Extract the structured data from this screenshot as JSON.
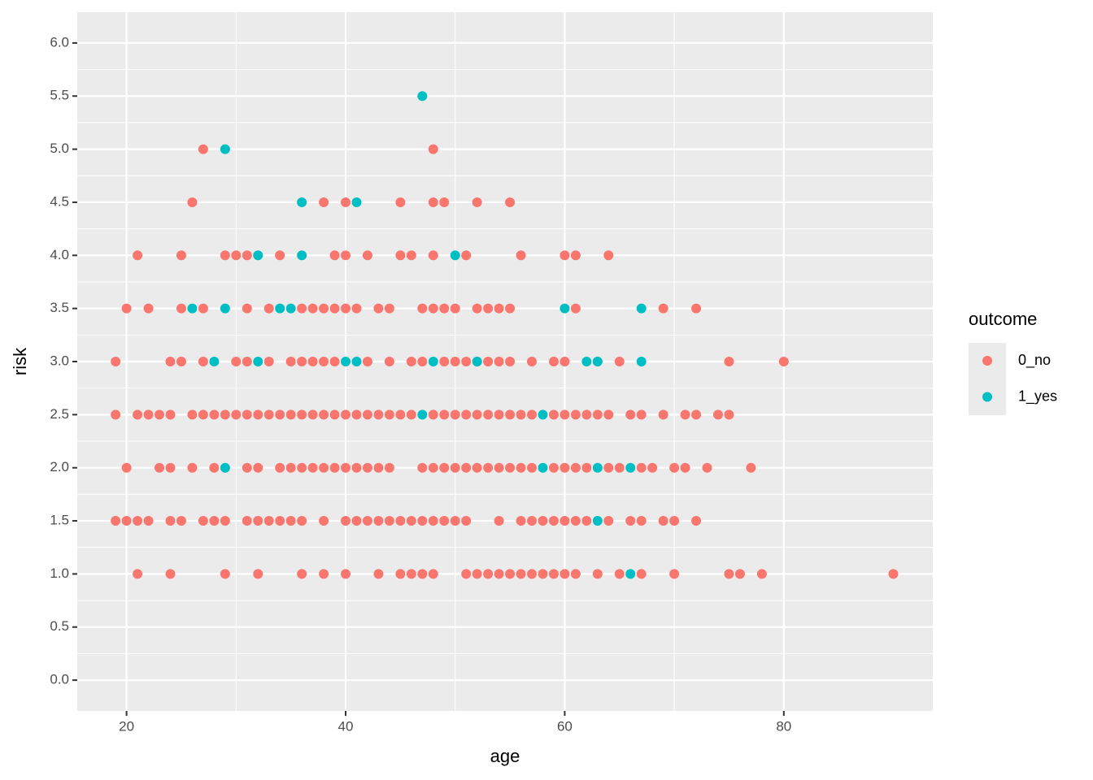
{
  "chart_data": {
    "type": "scatter",
    "x_label": "age",
    "y_label": "risk",
    "legend_title": "outcome",
    "legend_position": "right",
    "grid": true,
    "xlim": [
      15.5,
      93.6
    ],
    "ylim": [
      -0.29,
      6.29
    ],
    "xticks": [
      20,
      40,
      60,
      80
    ],
    "yticks": [
      {
        "value": 0,
        "label": "0.0"
      },
      {
        "value": 0.5,
        "label": "0.5"
      },
      {
        "value": 1,
        "label": "1.0"
      },
      {
        "value": 1.5,
        "label": "1.5"
      },
      {
        "value": 2,
        "label": "2.0"
      },
      {
        "value": 2.5,
        "label": "2.5"
      },
      {
        "value": 3,
        "label": "3.0"
      },
      {
        "value": 3.5,
        "label": "3.5"
      },
      {
        "value": 4,
        "label": "4.0"
      },
      {
        "value": 4.5,
        "label": "4.5"
      },
      {
        "value": 5,
        "label": "5.0"
      },
      {
        "value": 5.5,
        "label": "5.5"
      },
      {
        "value": 6,
        "label": "6.0"
      }
    ],
    "series": [
      {
        "name": "0_no",
        "color": "#F8766D",
        "x": [
          27,
          48,
          26,
          38,
          40,
          45,
          48,
          49,
          52,
          55,
          21,
          25,
          29,
          30,
          31,
          34,
          39,
          40,
          42,
          45,
          46,
          48,
          51,
          56,
          60,
          61,
          64,
          20,
          22,
          25,
          27,
          31,
          33,
          36,
          37,
          38,
          39,
          40,
          41,
          43,
          44,
          47,
          48,
          49,
          50,
          52,
          53,
          54,
          55,
          61,
          69,
          72,
          19,
          24,
          25,
          27,
          30,
          31,
          33,
          35,
          36,
          37,
          38,
          39,
          42,
          44,
          46,
          47,
          49,
          50,
          51,
          52,
          53,
          54,
          55,
          57,
          59,
          60,
          63,
          65,
          75,
          80,
          19,
          21,
          22,
          23,
          24,
          26,
          27,
          28,
          29,
          30,
          31,
          32,
          33,
          34,
          35,
          36,
          37,
          38,
          39,
          40,
          41,
          42,
          43,
          44,
          45,
          46,
          48,
          49,
          50,
          51,
          52,
          53,
          54,
          55,
          56,
          57,
          59,
          60,
          61,
          62,
          63,
          64,
          66,
          67,
          69,
          71,
          72,
          74,
          75,
          20,
          23,
          24,
          26,
          28,
          31,
          32,
          34,
          35,
          36,
          37,
          38,
          39,
          40,
          41,
          42,
          43,
          44,
          47,
          48,
          49,
          50,
          51,
          52,
          53,
          54,
          55,
          56,
          57,
          59,
          60,
          61,
          62,
          64,
          65,
          67,
          68,
          70,
          71,
          73,
          77,
          19,
          20,
          21,
          22,
          24,
          25,
          27,
          28,
          29,
          31,
          32,
          33,
          34,
          35,
          36,
          38,
          40,
          41,
          42,
          43,
          44,
          45,
          46,
          47,
          48,
          49,
          50,
          51,
          54,
          56,
          57,
          58,
          59,
          60,
          61,
          62,
          64,
          66,
          67,
          69,
          70,
          72,
          21,
          24,
          29,
          32,
          36,
          38,
          40,
          43,
          45,
          46,
          47,
          48,
          51,
          52,
          53,
          54,
          55,
          56,
          57,
          58,
          59,
          60,
          61,
          63,
          65,
          67,
          70,
          75,
          76,
          78,
          90
        ],
        "values": [
          5,
          5,
          4.5,
          4.5,
          4.5,
          4.5,
          4.5,
          4.5,
          4.5,
          4.5,
          4,
          4,
          4,
          4,
          4,
          4,
          4,
          4,
          4,
          4,
          4,
          4,
          4,
          4,
          4,
          4,
          4,
          3.5,
          3.5,
          3.5,
          3.5,
          3.5,
          3.5,
          3.5,
          3.5,
          3.5,
          3.5,
          3.5,
          3.5,
          3.5,
          3.5,
          3.5,
          3.5,
          3.5,
          3.5,
          3.5,
          3.5,
          3.5,
          3.5,
          3.5,
          3.5,
          3.5,
          3,
          3,
          3,
          3,
          3,
          3,
          3,
          3,
          3,
          3,
          3,
          3,
          3,
          3,
          3,
          3,
          3,
          3,
          3,
          3,
          3,
          3,
          3,
          3,
          3,
          3,
          3,
          3,
          3,
          3,
          2.5,
          2.5,
          2.5,
          2.5,
          2.5,
          2.5,
          2.5,
          2.5,
          2.5,
          2.5,
          2.5,
          2.5,
          2.5,
          2.5,
          2.5,
          2.5,
          2.5,
          2.5,
          2.5,
          2.5,
          2.5,
          2.5,
          2.5,
          2.5,
          2.5,
          2.5,
          2.5,
          2.5,
          2.5,
          2.5,
          2.5,
          2.5,
          2.5,
          2.5,
          2.5,
          2.5,
          2.5,
          2.5,
          2.5,
          2.5,
          2.5,
          2.5,
          2.5,
          2.5,
          2.5,
          2.5,
          2.5,
          2.5,
          2.5,
          2,
          2,
          2,
          2,
          2,
          2,
          2,
          2,
          2,
          2,
          2,
          2,
          2,
          2,
          2,
          2,
          2,
          2,
          2,
          2,
          2,
          2,
          2,
          2,
          2,
          2,
          2,
          2,
          2,
          2,
          2,
          2,
          2,
          2,
          2,
          2,
          2,
          2,
          2,
          2,
          2,
          1.5,
          1.5,
          1.5,
          1.5,
          1.5,
          1.5,
          1.5,
          1.5,
          1.5,
          1.5,
          1.5,
          1.5,
          1.5,
          1.5,
          1.5,
          1.5,
          1.5,
          1.5,
          1.5,
          1.5,
          1.5,
          1.5,
          1.5,
          1.5,
          1.5,
          1.5,
          1.5,
          1.5,
          1.5,
          1.5,
          1.5,
          1.5,
          1.5,
          1.5,
          1.5,
          1.5,
          1.5,
          1.5,
          1.5,
          1.5,
          1.5,
          1.5,
          1,
          1,
          1,
          1,
          1,
          1,
          1,
          1,
          1,
          1,
          1,
          1,
          1,
          1,
          1,
          1,
          1,
          1,
          1,
          1,
          1,
          1,
          1,
          1,
          1,
          1,
          1,
          1,
          1,
          1,
          1
        ]
      },
      {
        "name": "1_yes",
        "color": "#00BFC4",
        "x": [
          47,
          29,
          36,
          41,
          32,
          36,
          50,
          26,
          29,
          34,
          35,
          60,
          67,
          28,
          32,
          40,
          41,
          48,
          52,
          62,
          63,
          67,
          47,
          58,
          29,
          58,
          63,
          66,
          63,
          66
        ],
        "values": [
          5.5,
          5,
          4.5,
          4.5,
          4,
          4,
          4,
          3.5,
          3.5,
          3.5,
          3.5,
          3.5,
          3.5,
          3,
          3,
          3,
          3,
          3,
          3,
          3,
          3,
          3,
          2.5,
          2.5,
          2,
          2,
          2,
          2,
          1.5,
          1
        ]
      }
    ]
  }
}
